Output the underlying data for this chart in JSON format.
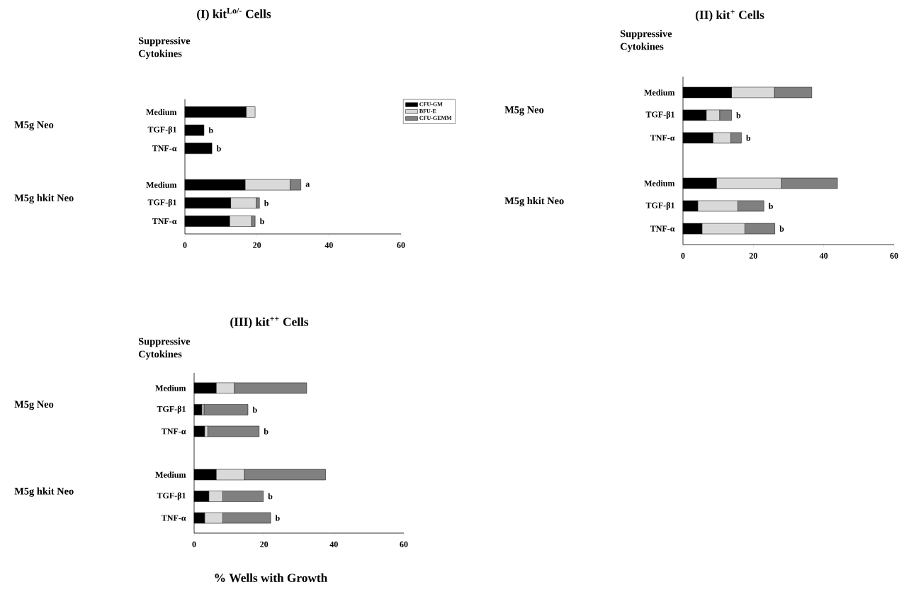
{
  "chart_data": [
    {
      "type": "bar",
      "orientation": "horizontal",
      "stacked": true,
      "title": "(I) kit$^{Lo/-}$ Cells",
      "categories": [
        "Medium",
        "TGF-β1",
        "TNF-α",
        null,
        "Medium",
        "TGF-β1",
        "TNF-α"
      ],
      "xlim": [
        0,
        60
      ],
      "xticks": [
        0,
        20,
        40,
        60
      ],
      "legend": "right",
      "annotations": [
        "Suppressive Cytokines",
        "M5g Neo",
        "M5g hkit Neo"
      ],
      "series": [
        {
          "name": "CFU-GM",
          "color": "#000000",
          "values": [
            17,
            5.3,
            7.5,
            null,
            16.7,
            12.7,
            12.4
          ]
        },
        {
          "name": "BFU-E",
          "color": "#d9d9d9",
          "values": [
            2.5,
            0,
            0,
            null,
            12.5,
            7.1,
            6.1
          ]
        },
        {
          "name": "CFU-GEMM",
          "color": "#808080",
          "values": [
            0,
            0,
            0,
            null,
            3,
            0.9,
            1.0
          ],
          "value_labels": [
            null,
            "b",
            "b",
            null,
            "a",
            "b",
            "b"
          ]
        }
      ]
    },
    {
      "type": "bar",
      "orientation": "horizontal",
      "stacked": true,
      "title": "(II) kit$^{+}$ Cells",
      "categories": [
        "Medium",
        "TGF-β1",
        "TNF-α",
        null,
        "Medium",
        "TGF-β1",
        "TNF-α"
      ],
      "xlim": [
        0,
        60
      ],
      "xticks": [
        0,
        20,
        40,
        60
      ],
      "annotations": [
        "Suppressive Cytokines",
        "M5g Neo",
        "M5g hkit Neo"
      ],
      "series": [
        {
          "color": "#000000",
          "values": [
            13.8,
            6.6,
            8.5,
            null,
            9.5,
            4.2,
            5.4
          ]
        },
        {
          "color": "#d9d9d9",
          "values": [
            12.2,
            3.8,
            5.1,
            null,
            18.5,
            11.4,
            12.2
          ]
        },
        {
          "color": "#808080",
          "values": [
            10.6,
            3.4,
            3.0,
            null,
            15.9,
            7.4,
            8.5
          ],
          "value_labels": [
            null,
            "b",
            "b",
            null,
            null,
            "b",
            "b"
          ]
        }
      ]
    },
    {
      "type": "bar",
      "orientation": "horizontal",
      "stacked": true,
      "title": "(III) kit$^{++}$ Cells",
      "categories": [
        "Medium",
        "TGF-β1",
        "TNF-α",
        null,
        "Medium",
        "TGF-β1",
        "TNF-α"
      ],
      "xlim": [
        0,
        60
      ],
      "xticks": [
        0,
        20,
        40,
        60
      ],
      "xlabel": "% Wells with Growth",
      "annotations": [
        "Suppressive Cytokines",
        "M5g Neo",
        "M5g hkit Neo"
      ],
      "series": [
        {
          "color": "#000000",
          "values": [
            6.3,
            2.2,
            3.0,
            null,
            6.3,
            4.2,
            3.0
          ]
        },
        {
          "color": "#d9d9d9",
          "values": [
            5.2,
            0.6,
            0.9,
            null,
            8.1,
            4.0,
            5.2
          ]
        },
        {
          "color": "#808080",
          "values": [
            20.7,
            12.6,
            14.7,
            null,
            23.2,
            11.6,
            13.7
          ],
          "value_labels": [
            null,
            "b",
            "b",
            null,
            null,
            "b",
            "b"
          ]
        }
      ]
    }
  ]
}
